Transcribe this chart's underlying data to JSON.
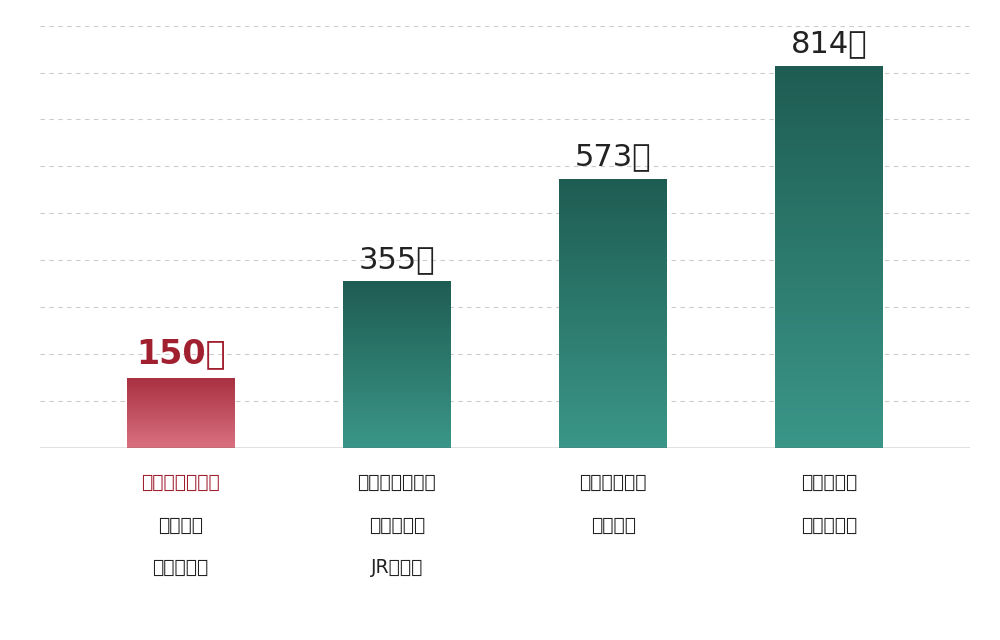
{
  "labels_line1": [
    "「なかもず」駅",
    "「三国ヶ丘」駅",
    "「新金岡」駅",
    "「堺東」駅"
  ],
  "labels_line2": [
    "御堂筋線",
    "南海高野線",
    "御堂筋線",
    "南海高野線"
  ],
  "labels_line3": [
    "南海高野線",
    "JR阪和線",
    "",
    ""
  ],
  "values": [
    150,
    355,
    573,
    814
  ],
  "value_labels": [
    "150戸",
    "355戸",
    "573戸",
    "814戸"
  ],
  "bar_color_red_top": "#a83040",
  "bar_color_red_bottom": "#d97080",
  "bar_color_teal_light": "#3a9688",
  "bar_color_teal_dark": "#1e5c52",
  "background_color": "#ffffff",
  "grid_color": "#cccccc",
  "label_color_red": "#a02030",
  "label_color_dark": "#222222",
  "ylim": [
    0,
    900
  ],
  "yticks": [
    100,
    200,
    300,
    400,
    500,
    600,
    700,
    800,
    900
  ]
}
